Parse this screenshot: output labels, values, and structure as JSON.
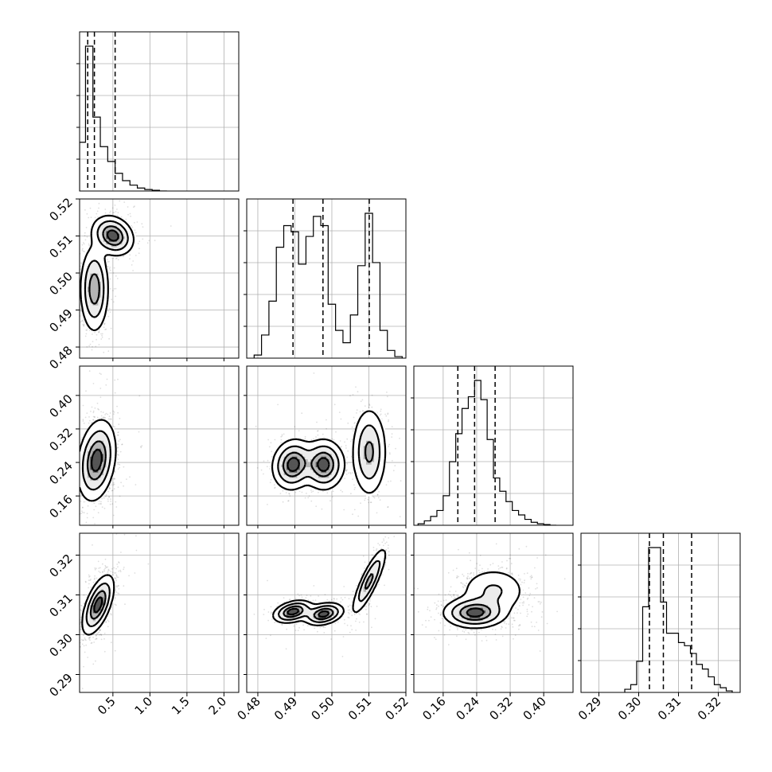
{
  "chart_data": {
    "type": "corner",
    "title": "",
    "colors": {
      "line": "#000000",
      "grid": "#b0b0b0",
      "points": "#000000",
      "fill": "#8c8c8c"
    },
    "grid": true,
    "parameters": [
      {
        "range": [
          0.05,
          2.2
        ],
        "ticks": [
          0.5,
          1.0,
          1.5,
          2.0
        ],
        "tick_labels": [
          "0.5",
          "1.0",
          "1.5",
          "2.0"
        ],
        "quantiles": [
          0.16,
          0.25,
          0.53
        ],
        "hist_edges": [
          0.05,
          0.13,
          0.23,
          0.33,
          0.43,
          0.53,
          0.63,
          0.73,
          0.83,
          0.93,
          1.03,
          1.13,
          1.23
        ],
        "hist_counts": [
          0.33,
          0.98,
          0.5,
          0.3,
          0.2,
          0.12,
          0.07,
          0.04,
          0.02,
          0.01,
          0.005,
          0.0
        ]
      },
      {
        "range": [
          0.477,
          0.52
        ],
        "ticks": [
          0.48,
          0.49,
          0.5,
          0.51,
          0.52
        ],
        "tick_labels": [
          "0.48",
          "0.49",
          "0.50",
          "0.51",
          "0.52"
        ],
        "quantiles": [
          0.4895,
          0.4976,
          0.5101
        ],
        "hist_edges": [
          0.479,
          0.481,
          0.483,
          0.485,
          0.487,
          0.489,
          0.491,
          0.493,
          0.495,
          0.497,
          0.499,
          0.501,
          0.503,
          0.505,
          0.507,
          0.509,
          0.511,
          0.513,
          0.515,
          0.517,
          0.519
        ],
        "hist_counts": [
          0.02,
          0.15,
          0.37,
          0.72,
          0.86,
          0.82,
          0.61,
          0.79,
          0.92,
          0.86,
          0.35,
          0.18,
          0.1,
          0.28,
          0.6,
          0.94,
          0.62,
          0.18,
          0.05,
          0.01
        ]
      },
      {
        "range": [
          0.09,
          0.47
        ],
        "ticks": [
          0.16,
          0.24,
          0.32,
          0.4
        ],
        "tick_labels": [
          "0.16",
          "0.24",
          "0.32",
          "0.40"
        ],
        "quantiles": [
          0.195,
          0.235,
          0.284
        ],
        "hist_edges": [
          0.1,
          0.115,
          0.13,
          0.145,
          0.16,
          0.175,
          0.19,
          0.205,
          0.22,
          0.235,
          0.25,
          0.265,
          0.28,
          0.295,
          0.31,
          0.325,
          0.34,
          0.355,
          0.37,
          0.385,
          0.4,
          0.415,
          0.43
        ],
        "hist_counts": [
          0.01,
          0.03,
          0.06,
          0.1,
          0.2,
          0.43,
          0.62,
          0.79,
          0.87,
          0.98,
          0.85,
          0.58,
          0.32,
          0.23,
          0.16,
          0.1,
          0.07,
          0.04,
          0.02,
          0.01,
          0.005,
          0.0
        ]
      },
      {
        "range": [
          0.2855,
          0.3255
        ],
        "ticks": [
          0.29,
          0.3,
          0.31,
          0.32
        ],
        "tick_labels": [
          "0.29",
          "0.30",
          "0.31",
          "0.32"
        ],
        "quantiles": [
          0.3027,
          0.3062,
          0.3133
        ],
        "hist_edges": [
          0.2965,
          0.298,
          0.2995,
          0.301,
          0.3025,
          0.304,
          0.3055,
          0.307,
          0.3085,
          0.31,
          0.3115,
          0.313,
          0.3145,
          0.316,
          0.3175,
          0.319,
          0.3205,
          0.322,
          0.3235
        ],
        "hist_counts": [
          0.02,
          0.05,
          0.2,
          0.55,
          0.93,
          0.93,
          0.58,
          0.38,
          0.38,
          0.32,
          0.3,
          0.25,
          0.18,
          0.15,
          0.1,
          0.05,
          0.03,
          0.01
        ]
      }
    ],
    "pair_modes": [
      {
        "row": 1,
        "col": 0,
        "modes": [
          {
            "x": 0.5,
            "y": 0.5101,
            "sx": 0.13,
            "sy": 0.0025,
            "r": -0.2,
            "w": 0.45
          },
          {
            "x": 0.25,
            "y": 0.4957,
            "sx": 0.09,
            "sy": 0.0055,
            "r": 0.0,
            "w": 0.55
          }
        ]
      },
      {
        "row": 2,
        "col": 0,
        "modes": [
          {
            "x": 0.28,
            "y": 0.245,
            "sx": 0.12,
            "sy": 0.045,
            "r": 0.25,
            "w": 1.0
          }
        ]
      },
      {
        "row": 2,
        "col": 1,
        "modes": [
          {
            "x": 0.4895,
            "y": 0.235,
            "sx": 0.0026,
            "sy": 0.028,
            "r": 0.1,
            "w": 0.33
          },
          {
            "x": 0.4978,
            "y": 0.235,
            "sx": 0.0026,
            "sy": 0.028,
            "r": 0.0,
            "w": 0.33
          },
          {
            "x": 0.5101,
            "y": 0.265,
            "sx": 0.0022,
            "sy": 0.05,
            "r": 0.0,
            "w": 0.34
          }
        ]
      },
      {
        "row": 3,
        "col": 0,
        "modes": [
          {
            "x": 0.3,
            "y": 0.3075,
            "sx": 0.1,
            "sy": 0.0035,
            "r": 0.6,
            "w": 1.0
          }
        ]
      },
      {
        "row": 3,
        "col": 1,
        "modes": [
          {
            "x": 0.4895,
            "y": 0.3058,
            "sx": 0.0025,
            "sy": 0.0013,
            "r": 0.35,
            "w": 0.33
          },
          {
            "x": 0.4978,
            "y": 0.3052,
            "sx": 0.0025,
            "sy": 0.0013,
            "r": 0.3,
            "w": 0.33
          },
          {
            "x": 0.5101,
            "y": 0.3135,
            "sx": 0.0022,
            "sy": 0.004,
            "r": 0.85,
            "w": 0.34
          }
        ]
      },
      {
        "row": 3,
        "col": 2,
        "modes": [
          {
            "x": 0.235,
            "y": 0.3055,
            "sx": 0.035,
            "sy": 0.0018,
            "r": 0.0,
            "w": 0.6
          },
          {
            "x": 0.28,
            "y": 0.311,
            "sx": 0.04,
            "sy": 0.003,
            "r": 0.0,
            "w": 0.4
          }
        ]
      }
    ]
  }
}
